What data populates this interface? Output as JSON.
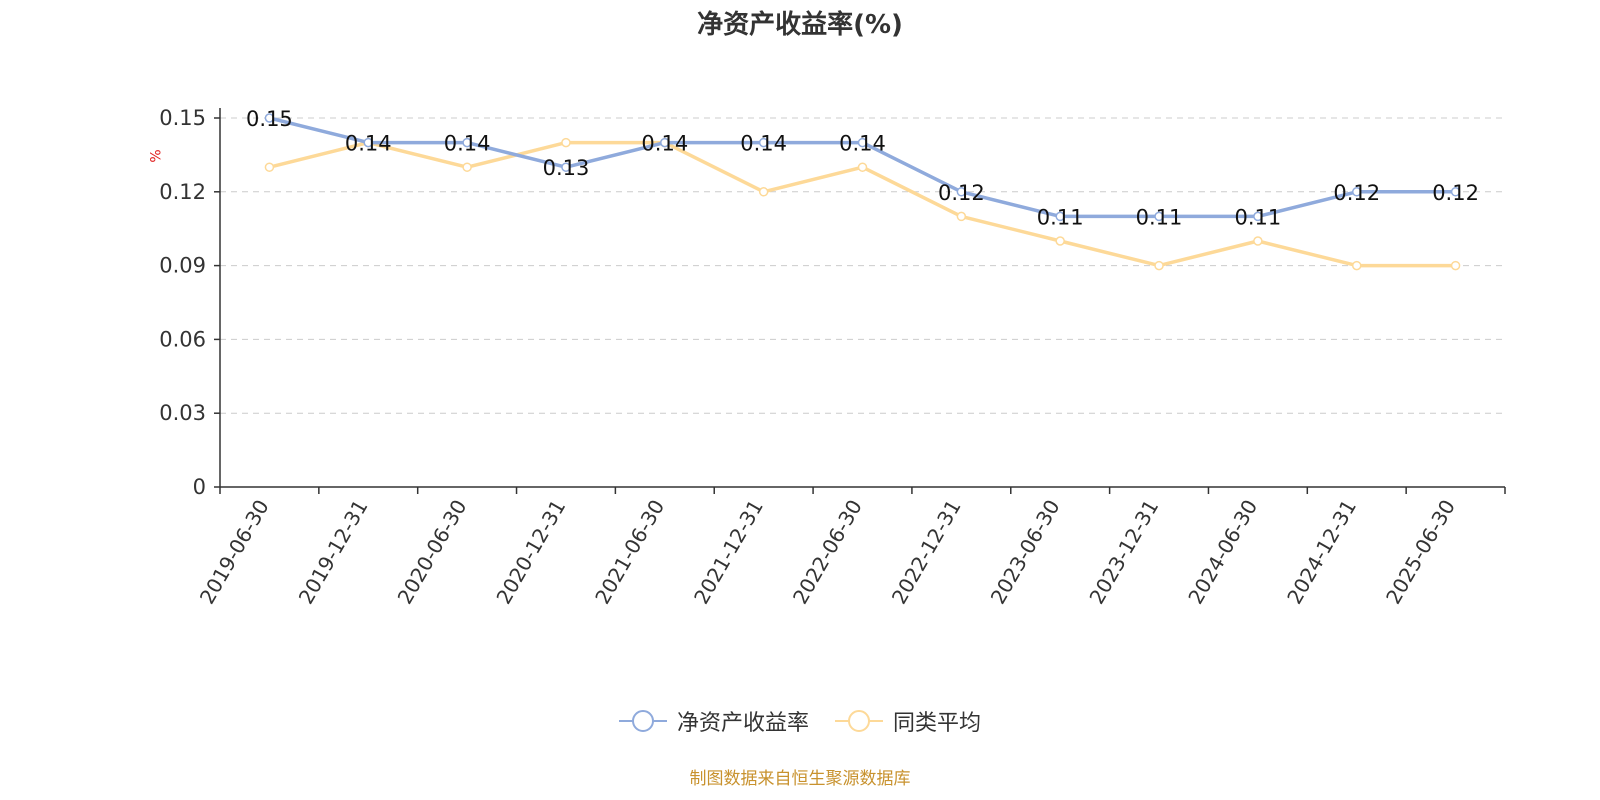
{
  "title": "净资产收益率(%)",
  "source_note": "制图数据来自恒生聚源数据库",
  "colors": {
    "series_main": "#8faadc",
    "series_avg": "#fdd998",
    "grid": "#cccccc",
    "axis": "#333333",
    "unit": "#e02020",
    "source": "#c8922e"
  },
  "chart_data": {
    "type": "line",
    "title": "净资产收益率(%)",
    "ylabel": "%",
    "xlabel": "",
    "ylim": [
      0,
      0.15
    ],
    "yticks": [
      0,
      0.03,
      0.06,
      0.09,
      0.12,
      0.15
    ],
    "ytick_labels": [
      "0",
      "0.03",
      "0.06",
      "0.09",
      "0.12",
      "0.15"
    ],
    "grid": true,
    "legend_position": "bottom-center",
    "categories": [
      "2019-06-30",
      "2019-12-31",
      "2020-06-30",
      "2020-12-31",
      "2021-06-30",
      "2021-12-31",
      "2022-06-30",
      "2022-12-31",
      "2023-06-30",
      "2023-12-31",
      "2024-06-30",
      "2024-12-31",
      "2025-06-30"
    ],
    "series": [
      {
        "name": "净资产收益率",
        "color": "#8faadc",
        "show_labels": true,
        "values": [
          0.15,
          0.14,
          0.14,
          0.13,
          0.14,
          0.14,
          0.14,
          0.12,
          0.11,
          0.11,
          0.11,
          0.12,
          0.12
        ],
        "labels": [
          "0.15",
          "0.14",
          "0.14",
          "0.13",
          "0.14",
          "0.14",
          "0.14",
          "0.12",
          "0.11",
          "0.11",
          "0.11",
          "0.12",
          "0.12"
        ]
      },
      {
        "name": "同类平均",
        "color": "#fdd998",
        "show_labels": false,
        "values": [
          0.13,
          0.14,
          0.13,
          0.14,
          0.14,
          0.12,
          0.13,
          0.11,
          0.1,
          0.09,
          0.1,
          0.09,
          0.09
        ]
      }
    ]
  }
}
